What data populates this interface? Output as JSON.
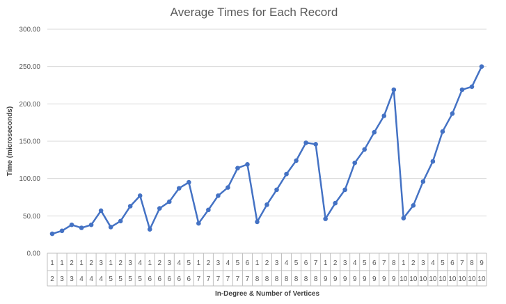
{
  "chart_data": {
    "type": "line",
    "title": "Average Times for Each Record",
    "xlabel": "In-Degree & Number of Vertices",
    "ylabel": "Time (microseconds)",
    "ylim": [
      0,
      300
    ],
    "yticks": [
      "0.00",
      "50.00",
      "100.00",
      "150.00",
      "200.00",
      "250.00",
      "300.00"
    ],
    "grid": true,
    "categories": [
      {
        "in_degree": "1",
        "vertices": "2"
      },
      {
        "in_degree": "1",
        "vertices": "3"
      },
      {
        "in_degree": "2",
        "vertices": "3"
      },
      {
        "in_degree": "1",
        "vertices": "4"
      },
      {
        "in_degree": "2",
        "vertices": "4"
      },
      {
        "in_degree": "3",
        "vertices": "4"
      },
      {
        "in_degree": "1",
        "vertices": "5"
      },
      {
        "in_degree": "2",
        "vertices": "5"
      },
      {
        "in_degree": "3",
        "vertices": "5"
      },
      {
        "in_degree": "4",
        "vertices": "5"
      },
      {
        "in_degree": "1",
        "vertices": "6"
      },
      {
        "in_degree": "2",
        "vertices": "6"
      },
      {
        "in_degree": "3",
        "vertices": "6"
      },
      {
        "in_degree": "4",
        "vertices": "6"
      },
      {
        "in_degree": "5",
        "vertices": "6"
      },
      {
        "in_degree": "1",
        "vertices": "7"
      },
      {
        "in_degree": "2",
        "vertices": "7"
      },
      {
        "in_degree": "3",
        "vertices": "7"
      },
      {
        "in_degree": "4",
        "vertices": "7"
      },
      {
        "in_degree": "5",
        "vertices": "7"
      },
      {
        "in_degree": "6",
        "vertices": "7"
      },
      {
        "in_degree": "1",
        "vertices": "8"
      },
      {
        "in_degree": "2",
        "vertices": "8"
      },
      {
        "in_degree": "3",
        "vertices": "8"
      },
      {
        "in_degree": "4",
        "vertices": "8"
      },
      {
        "in_degree": "5",
        "vertices": "8"
      },
      {
        "in_degree": "6",
        "vertices": "8"
      },
      {
        "in_degree": "7",
        "vertices": "8"
      },
      {
        "in_degree": "1",
        "vertices": "9"
      },
      {
        "in_degree": "2",
        "vertices": "9"
      },
      {
        "in_degree": "3",
        "vertices": "9"
      },
      {
        "in_degree": "4",
        "vertices": "9"
      },
      {
        "in_degree": "5",
        "vertices": "9"
      },
      {
        "in_degree": "6",
        "vertices": "9"
      },
      {
        "in_degree": "7",
        "vertices": "9"
      },
      {
        "in_degree": "8",
        "vertices": "9"
      },
      {
        "in_degree": "1",
        "vertices": "10"
      },
      {
        "in_degree": "2",
        "vertices": "10"
      },
      {
        "in_degree": "3",
        "vertices": "10"
      },
      {
        "in_degree": "4",
        "vertices": "10"
      },
      {
        "in_degree": "5",
        "vertices": "10"
      },
      {
        "in_degree": "6",
        "vertices": "10"
      },
      {
        "in_degree": "7",
        "vertices": "10"
      },
      {
        "in_degree": "8",
        "vertices": "10"
      },
      {
        "in_degree": "9",
        "vertices": "10"
      }
    ],
    "series": [
      {
        "color": "#4472c4",
        "values": [
          26,
          30,
          38,
          34,
          38,
          57,
          35,
          43,
          63,
          77,
          32,
          60,
          69,
          87,
          95,
          40,
          58,
          77,
          88,
          114,
          119,
          42,
          65,
          85,
          106,
          124,
          148,
          146,
          46,
          67,
          85,
          121,
          139,
          162,
          184,
          219,
          47,
          64,
          96,
          123,
          163,
          187,
          219,
          223,
          250
        ]
      }
    ]
  }
}
